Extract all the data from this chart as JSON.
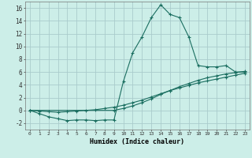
{
  "xlabel": "Humidex (Indice chaleur)",
  "bg_color": "#cceee8",
  "grid_color": "#aacccc",
  "line_color": "#1a6e60",
  "xlim": [
    -0.5,
    23.5
  ],
  "ylim": [
    -3,
    17
  ],
  "xticks": [
    0,
    1,
    2,
    3,
    4,
    5,
    6,
    7,
    8,
    9,
    10,
    11,
    12,
    13,
    14,
    15,
    16,
    17,
    18,
    19,
    20,
    21,
    22,
    23
  ],
  "yticks": [
    -2,
    0,
    2,
    4,
    6,
    8,
    10,
    12,
    14,
    16
  ],
  "series": {
    "line1_x": [
      0,
      1,
      2,
      3,
      4,
      5,
      6,
      7,
      8,
      9,
      10,
      11,
      12,
      13,
      14,
      15,
      16,
      17,
      18,
      19,
      20,
      21,
      22,
      23
    ],
    "line1_y": [
      0.0,
      -0.5,
      -1.0,
      -1.3,
      -1.6,
      -1.5,
      -1.5,
      -1.6,
      -1.5,
      -1.5,
      4.5,
      9.0,
      11.5,
      14.5,
      16.5,
      15.0,
      14.5,
      11.5,
      7.0,
      6.8,
      6.8,
      7.0,
      6.0,
      6.0
    ],
    "line2_x": [
      0,
      9,
      10,
      11,
      12,
      13,
      14,
      15,
      16,
      17,
      18,
      19,
      20,
      21,
      22,
      23
    ],
    "line2_y": [
      0.0,
      0.0,
      0.3,
      0.7,
      1.2,
      1.8,
      2.5,
      3.1,
      3.7,
      4.2,
      4.7,
      5.1,
      5.4,
      5.7,
      5.9,
      6.1
    ],
    "line3_x": [
      0,
      1,
      2,
      3,
      4,
      5,
      6,
      7,
      8,
      9,
      10,
      11,
      12,
      13,
      14,
      15,
      16,
      17,
      18,
      19,
      20,
      21,
      22,
      23
    ],
    "line3_y": [
      0.0,
      -0.1,
      -0.2,
      -0.3,
      -0.2,
      -0.1,
      0.0,
      0.1,
      0.3,
      0.5,
      0.8,
      1.2,
      1.6,
      2.1,
      2.6,
      3.1,
      3.5,
      3.9,
      4.3,
      4.6,
      4.9,
      5.2,
      5.5,
      5.8
    ]
  }
}
